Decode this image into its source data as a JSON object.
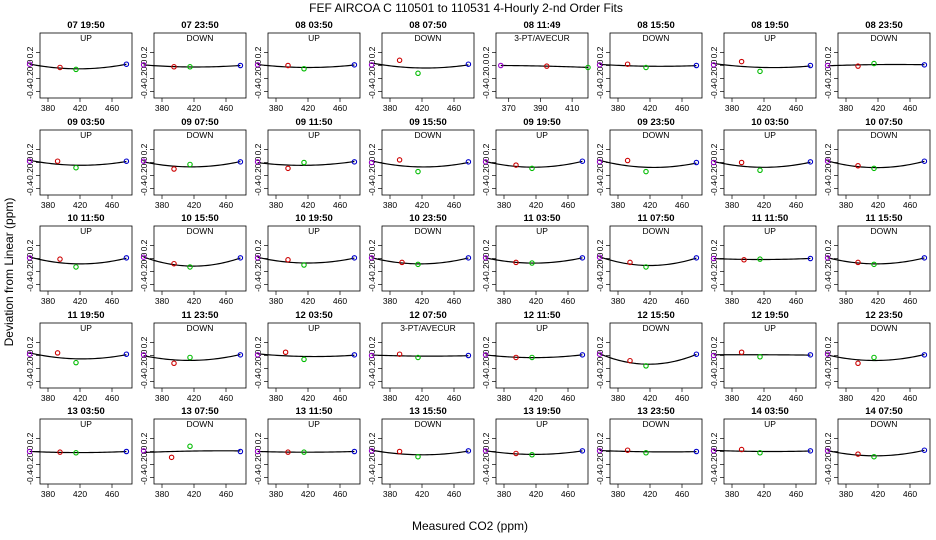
{
  "chart_data": {
    "type": "scatter",
    "title": "FEF   AIRCOA C   110501 to 110531   4-Hourly 2-nd Order Fits",
    "xlabel": "Measured CO2 (ppm)",
    "ylabel": "Deviation from Linear (ppm)",
    "ylim": [
      -0.5,
      0.5
    ],
    "yticks": [
      -0.4,
      -0.2,
      0.0,
      0.2
    ],
    "ytick_labels": [
      "-0.4",
      "-0.2",
      "0.0",
      "0.2"
    ],
    "colors": {
      "first": "#9900cc",
      "second": "#cc0000",
      "third": "#00bb00",
      "fourth": "#0000cc",
      "curve": "#000000"
    },
    "panels": [
      {
        "title": "07 19:50",
        "label": "UP",
        "points": [
          [
            357,
            0.02
          ],
          [
            395,
            -0.03
          ],
          [
            415,
            -0.06
          ],
          [
            478,
            0.02
          ]
        ]
      },
      {
        "title": "07 23:50",
        "label": "DOWN",
        "points": [
          [
            357,
            0.01
          ],
          [
            395,
            -0.02
          ],
          [
            415,
            -0.02
          ],
          [
            478,
            0.0
          ]
        ]
      },
      {
        "title": "08 03:50",
        "label": "UP",
        "points": [
          [
            357,
            0.01
          ],
          [
            395,
            0.0
          ],
          [
            415,
            -0.05
          ],
          [
            478,
            0.01
          ]
        ]
      },
      {
        "title": "08 07:50",
        "label": "DOWN",
        "points": [
          [
            357,
            0.01
          ],
          [
            392,
            0.08
          ],
          [
            415,
            -0.12
          ],
          [
            478,
            0.02
          ]
        ]
      },
      {
        "title": "08 11:49",
        "label": "3-PT/AVECUR",
        "xticks": [
          370,
          390,
          410
        ],
        "xlim": [
          362,
          420
        ],
        "points": [
          [
            365,
            0.0
          ],
          [
            394,
            -0.01
          ],
          [
            420,
            -0.03
          ]
        ]
      },
      {
        "title": "08 15:50",
        "label": "DOWN",
        "points": [
          [
            357,
            0.01
          ],
          [
            392,
            0.02
          ],
          [
            415,
            -0.03
          ],
          [
            478,
            0.0
          ]
        ]
      },
      {
        "title": "08 19:50",
        "label": "UP",
        "points": [
          [
            357,
            0.01
          ],
          [
            392,
            0.06
          ],
          [
            415,
            -0.09
          ],
          [
            478,
            0.0
          ]
        ]
      },
      {
        "title": "08 23:50",
        "label": "DOWN",
        "points": [
          [
            357,
            0.0
          ],
          [
            395,
            -0.01
          ],
          [
            415,
            0.03
          ],
          [
            478,
            0.01
          ]
        ]
      },
      {
        "title": "09 03:50",
        "label": "UP",
        "points": [
          [
            357,
            0.02
          ],
          [
            392,
            0.02
          ],
          [
            415,
            -0.08
          ],
          [
            478,
            0.02
          ]
        ]
      },
      {
        "title": "09 07:50",
        "label": "DOWN",
        "points": [
          [
            357,
            0.02
          ],
          [
            395,
            -0.1
          ],
          [
            415,
            -0.03
          ],
          [
            478,
            0.01
          ]
        ]
      },
      {
        "title": "09 11:50",
        "label": "UP",
        "points": [
          [
            357,
            0.01
          ],
          [
            395,
            -0.09
          ],
          [
            415,
            0.0
          ],
          [
            478,
            0.01
          ]
        ]
      },
      {
        "title": "09 15:50",
        "label": "DOWN",
        "points": [
          [
            357,
            0.0
          ],
          [
            392,
            0.04
          ],
          [
            415,
            -0.14
          ],
          [
            478,
            0.01
          ]
        ]
      },
      {
        "title": "09 19:50",
        "label": "UP",
        "points": [
          [
            357,
            0.01
          ],
          [
            395,
            -0.04
          ],
          [
            415,
            -0.09
          ],
          [
            478,
            0.02
          ]
        ]
      },
      {
        "title": "09 23:50",
        "label": "DOWN",
        "points": [
          [
            357,
            0.01
          ],
          [
            392,
            0.03
          ],
          [
            415,
            -0.14
          ],
          [
            478,
            0.0
          ]
        ]
      },
      {
        "title": "10 03:50",
        "label": "UP",
        "points": [
          [
            357,
            0.0
          ],
          [
            392,
            0.0
          ],
          [
            415,
            -0.12
          ],
          [
            478,
            0.01
          ]
        ]
      },
      {
        "title": "10 07:50",
        "label": "DOWN",
        "points": [
          [
            357,
            0.02
          ],
          [
            395,
            -0.05
          ],
          [
            415,
            -0.09
          ],
          [
            478,
            0.02
          ]
        ]
      },
      {
        "title": "10 11:50",
        "label": "UP",
        "points": [
          [
            357,
            0.01
          ],
          [
            395,
            -0.01
          ],
          [
            415,
            -0.13
          ],
          [
            478,
            0.01
          ]
        ]
      },
      {
        "title": "10 15:50",
        "label": "DOWN",
        "points": [
          [
            357,
            0.02
          ],
          [
            395,
            -0.08
          ],
          [
            415,
            -0.13
          ],
          [
            478,
            0.01
          ]
        ]
      },
      {
        "title": "10 19:50",
        "label": "UP",
        "points": [
          [
            357,
            0.01
          ],
          [
            395,
            -0.02
          ],
          [
            415,
            -0.1
          ],
          [
            478,
            0.01
          ]
        ]
      },
      {
        "title": "10 23:50",
        "label": "DOWN",
        "points": [
          [
            357,
            0.01
          ],
          [
            395,
            -0.06
          ],
          [
            415,
            -0.09
          ],
          [
            478,
            0.01
          ]
        ]
      },
      {
        "title": "11 03:50",
        "label": "UP",
        "points": [
          [
            357,
            0.01
          ],
          [
            395,
            -0.06
          ],
          [
            415,
            -0.07
          ],
          [
            478,
            0.01
          ]
        ]
      },
      {
        "title": "11 07:50",
        "label": "DOWN",
        "points": [
          [
            357,
            0.02
          ],
          [
            395,
            -0.06
          ],
          [
            415,
            -0.13
          ],
          [
            478,
            0.01
          ]
        ]
      },
      {
        "title": "11 11:50",
        "label": "UP",
        "points": [
          [
            357,
            0.0
          ],
          [
            395,
            -0.02
          ],
          [
            415,
            -0.01
          ],
          [
            478,
            0.0
          ]
        ]
      },
      {
        "title": "11 15:50",
        "label": "DOWN",
        "points": [
          [
            357,
            0.01
          ],
          [
            395,
            -0.06
          ],
          [
            415,
            -0.09
          ],
          [
            478,
            0.01
          ]
        ]
      },
      {
        "title": "11 19:50",
        "label": "UP",
        "points": [
          [
            357,
            0.02
          ],
          [
            392,
            0.04
          ],
          [
            415,
            -0.11
          ],
          [
            478,
            0.02
          ]
        ]
      },
      {
        "title": "11 23:50",
        "label": "DOWN",
        "points": [
          [
            357,
            0.01
          ],
          [
            395,
            -0.12
          ],
          [
            415,
            -0.03
          ],
          [
            478,
            0.01
          ]
        ]
      },
      {
        "title": "12 03:50",
        "label": "UP",
        "points": [
          [
            357,
            0.01
          ],
          [
            392,
            0.05
          ],
          [
            415,
            -0.06
          ],
          [
            478,
            0.01
          ]
        ]
      },
      {
        "title": "12 07:50",
        "label": "3-PT/AVECUR",
        "points": [
          [
            357,
            0.0
          ],
          [
            392,
            0.02
          ],
          [
            415,
            -0.03
          ],
          [
            478,
            0.0
          ]
        ]
      },
      {
        "title": "12 11:50",
        "label": "UP",
        "points": [
          [
            357,
            0.01
          ],
          [
            395,
            -0.03
          ],
          [
            415,
            -0.03
          ],
          [
            478,
            0.01
          ]
        ]
      },
      {
        "title": "12 15:50",
        "label": "DOWN",
        "points": [
          [
            357,
            0.02
          ],
          [
            395,
            -0.08
          ],
          [
            415,
            -0.16
          ],
          [
            478,
            0.02
          ]
        ]
      },
      {
        "title": "12 19:50",
        "label": "UP",
        "points": [
          [
            357,
            0.0
          ],
          [
            392,
            0.05
          ],
          [
            415,
            -0.02
          ],
          [
            478,
            0.01
          ]
        ]
      },
      {
        "title": "12 23:50",
        "label": "DOWN",
        "points": [
          [
            357,
            0.02
          ],
          [
            395,
            -0.12
          ],
          [
            415,
            -0.03
          ],
          [
            478,
            0.01
          ]
        ]
      },
      {
        "title": "13 03:50",
        "label": "UP",
        "points": [
          [
            357,
            0.0
          ],
          [
            395,
            -0.01
          ],
          [
            415,
            -0.02
          ],
          [
            478,
            0.0
          ]
        ]
      },
      {
        "title": "13 07:50",
        "label": "DOWN",
        "points": [
          [
            357,
            0.01
          ],
          [
            392,
            -0.09
          ],
          [
            415,
            0.08
          ],
          [
            478,
            0.0
          ]
        ]
      },
      {
        "title": "13 11:50",
        "label": "UP",
        "points": [
          [
            357,
            0.0
          ],
          [
            395,
            -0.01
          ],
          [
            415,
            -0.01
          ],
          [
            478,
            0.0
          ]
        ]
      },
      {
        "title": "13 15:50",
        "label": "DOWN",
        "points": [
          [
            357,
            0.01
          ],
          [
            392,
            0.0
          ],
          [
            415,
            -0.08
          ],
          [
            478,
            0.01
          ]
        ]
      },
      {
        "title": "13 19:50",
        "label": "UP",
        "points": [
          [
            357,
            0.01
          ],
          [
            395,
            -0.03
          ],
          [
            415,
            -0.05
          ],
          [
            478,
            0.01
          ]
        ]
      },
      {
        "title": "13 23:50",
        "label": "DOWN",
        "points": [
          [
            357,
            0.01
          ],
          [
            392,
            0.02
          ],
          [
            415,
            -0.02
          ],
          [
            478,
            0.0
          ]
        ]
      },
      {
        "title": "14 03:50",
        "label": "UP",
        "points": [
          [
            357,
            0.01
          ],
          [
            392,
            0.03
          ],
          [
            415,
            -0.02
          ],
          [
            478,
            0.01
          ]
        ]
      },
      {
        "title": "14 07:50",
        "label": "DOWN",
        "points": [
          [
            357,
            0.01
          ],
          [
            395,
            -0.04
          ],
          [
            415,
            -0.08
          ],
          [
            478,
            0.02
          ]
        ]
      }
    ]
  }
}
